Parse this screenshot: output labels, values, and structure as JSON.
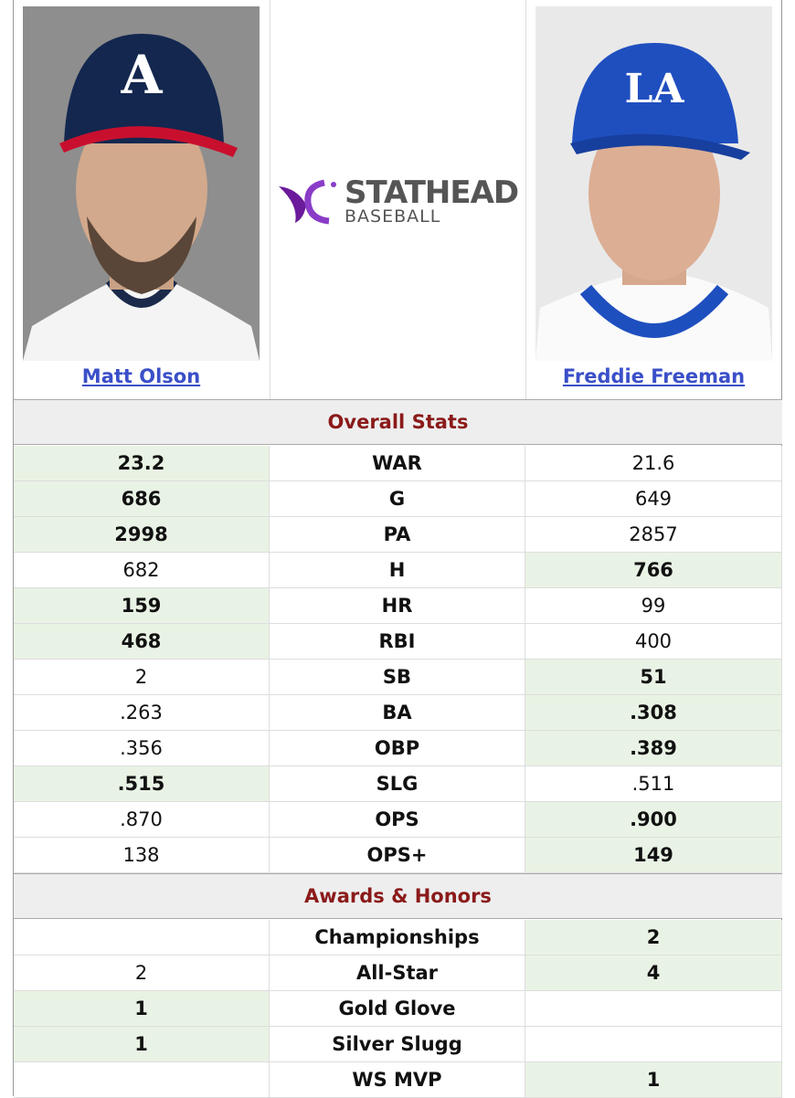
{
  "players": [
    {
      "name": "Matt Olson"
    },
    {
      "name": "Freddie Freeman"
    }
  ],
  "logo": {
    "brand": "STATHEAD",
    "product": "BASEBALL"
  },
  "sections": [
    {
      "title": "Overall Stats",
      "rows": [
        {
          "stat": "WAR",
          "left": "23.2",
          "right": "21.6",
          "leader": "left"
        },
        {
          "stat": "G",
          "left": "686",
          "right": "649",
          "leader": "left"
        },
        {
          "stat": "PA",
          "left": "2998",
          "right": "2857",
          "leader": "left"
        },
        {
          "stat": "H",
          "left": "682",
          "right": "766",
          "leader": "right"
        },
        {
          "stat": "HR",
          "left": "159",
          "right": "99",
          "leader": "left"
        },
        {
          "stat": "RBI",
          "left": "468",
          "right": "400",
          "leader": "left"
        },
        {
          "stat": "SB",
          "left": "2",
          "right": "51",
          "leader": "right"
        },
        {
          "stat": "BA",
          "left": ".263",
          "right": ".308",
          "leader": "right"
        },
        {
          "stat": "OBP",
          "left": ".356",
          "right": ".389",
          "leader": "right"
        },
        {
          "stat": "SLG",
          "left": ".515",
          "right": ".511",
          "leader": "left"
        },
        {
          "stat": "OPS",
          "left": ".870",
          "right": ".900",
          "leader": "right"
        },
        {
          "stat": "OPS+",
          "left": "138",
          "right": "149",
          "leader": "right"
        }
      ]
    },
    {
      "title": "Awards & Honors",
      "rows": [
        {
          "stat": "Championships",
          "left": null,
          "right": "2",
          "leader": "right"
        },
        {
          "stat": "All-Star",
          "left": "2",
          "right": "4",
          "leader": "right"
        },
        {
          "stat": "Gold Glove",
          "left": "1",
          "right": null,
          "leader": "left"
        },
        {
          "stat": "Silver Slugg",
          "left": "1",
          "right": null,
          "leader": "left"
        },
        {
          "stat": "WS MVP",
          "left": null,
          "right": "1",
          "leader": "right"
        }
      ]
    }
  ]
}
